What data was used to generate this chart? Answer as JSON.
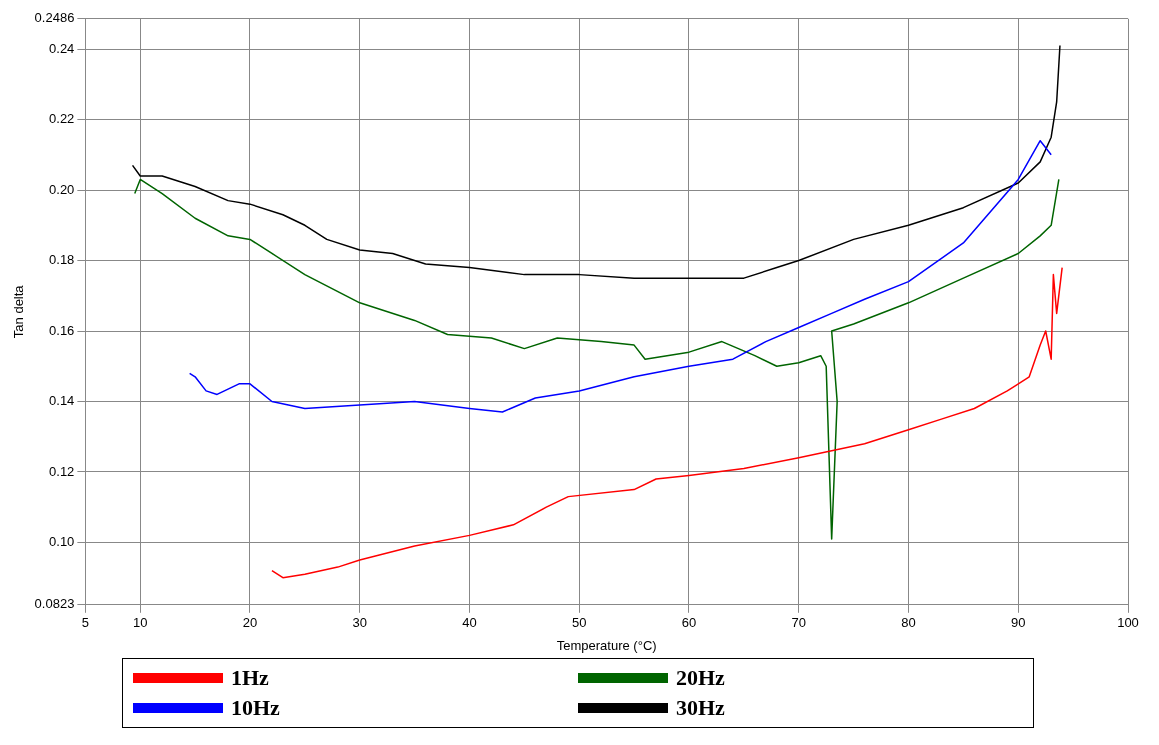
{
  "chart_data": {
    "type": "line",
    "xlabel": "Temperature (°C)",
    "ylabel": "Tan delta",
    "xlim": [
      5,
      100
    ],
    "xticks": [
      5,
      10,
      20,
      30,
      40,
      50,
      60,
      70,
      80,
      90,
      100
    ],
    "ylim": [
      0.0823,
      0.2486
    ],
    "yticks": [
      0.0823,
      {
        "value": 0.1,
        "label": "0.10"
      },
      0.12,
      0.14,
      0.16,
      0.18,
      {
        "value": 0.2,
        "label": "0.20"
      },
      0.22,
      0.24,
      0.2486
    ],
    "grid": true,
    "legend": "bottom",
    "marker": "none",
    "line_style": "solid",
    "series": [
      {
        "name": "1Hz",
        "color": "#ff0000",
        "x": [
          22,
          23,
          25,
          28,
          30,
          35,
          40,
          44,
          47,
          49,
          55,
          57,
          60,
          65,
          70,
          73,
          76,
          80,
          83,
          86,
          89,
          91,
          92,
          92.5,
          93,
          93.2,
          93.5,
          94
        ],
        "values": [
          0.092,
          0.09,
          0.091,
          0.093,
          0.095,
          0.099,
          0.102,
          0.105,
          0.11,
          0.113,
          0.115,
          0.118,
          0.119,
          0.121,
          0.124,
          0.126,
          0.128,
          0.132,
          0.135,
          0.138,
          0.143,
          0.147,
          0.156,
          0.16,
          0.152,
          0.176,
          0.165,
          0.178
        ]
      },
      {
        "name": "10Hz",
        "color": "#0000ff",
        "x": [
          14.5,
          15,
          16,
          17,
          19,
          20,
          22,
          25,
          30,
          35,
          40,
          43,
          46,
          50,
          55,
          60,
          64,
          67,
          70,
          73,
          76,
          80,
          85,
          90,
          92,
          93
        ],
        "values": [
          0.148,
          0.147,
          0.143,
          0.142,
          0.145,
          0.145,
          0.14,
          0.138,
          0.139,
          0.14,
          0.138,
          0.137,
          0.141,
          0.143,
          0.147,
          0.15,
          0.152,
          0.157,
          0.161,
          0.165,
          0.169,
          0.174,
          0.185,
          0.203,
          0.214,
          0.21
        ]
      },
      {
        "name": "20Hz",
        "color": "#006400",
        "x": [
          9.5,
          10,
          12,
          15,
          18,
          20,
          22,
          25,
          30,
          35,
          38,
          42,
          45,
          48,
          52,
          55,
          56,
          60,
          63,
          66,
          68,
          70,
          72,
          72.5,
          73,
          73.5,
          73,
          75,
          80,
          85,
          90,
          92,
          93,
          93.7
        ],
        "values": [
          0.199,
          0.203,
          0.199,
          0.192,
          0.187,
          0.186,
          0.182,
          0.176,
          0.168,
          0.163,
          0.159,
          0.158,
          0.155,
          0.158,
          0.157,
          0.156,
          0.152,
          0.154,
          0.157,
          0.153,
          0.15,
          0.151,
          0.153,
          0.15,
          0.101,
          0.14,
          0.16,
          0.162,
          0.168,
          0.175,
          0.182,
          0.187,
          0.19,
          0.203
        ]
      },
      {
        "name": "30Hz",
        "color": "#000000",
        "x": [
          9.3,
          10,
          12,
          15,
          18,
          20,
          23,
          25,
          27,
          30,
          33,
          36,
          40,
          45,
          50,
          55,
          60,
          65,
          68,
          70,
          75,
          80,
          85,
          90,
          92,
          93,
          93.5,
          93.8
        ],
        "values": [
          0.207,
          0.204,
          0.204,
          0.201,
          0.197,
          0.196,
          0.193,
          0.19,
          0.186,
          0.183,
          0.182,
          0.179,
          0.178,
          0.176,
          0.176,
          0.175,
          0.175,
          0.175,
          0.178,
          0.18,
          0.186,
          0.19,
          0.195,
          0.202,
          0.208,
          0.215,
          0.225,
          0.241
        ]
      }
    ]
  }
}
